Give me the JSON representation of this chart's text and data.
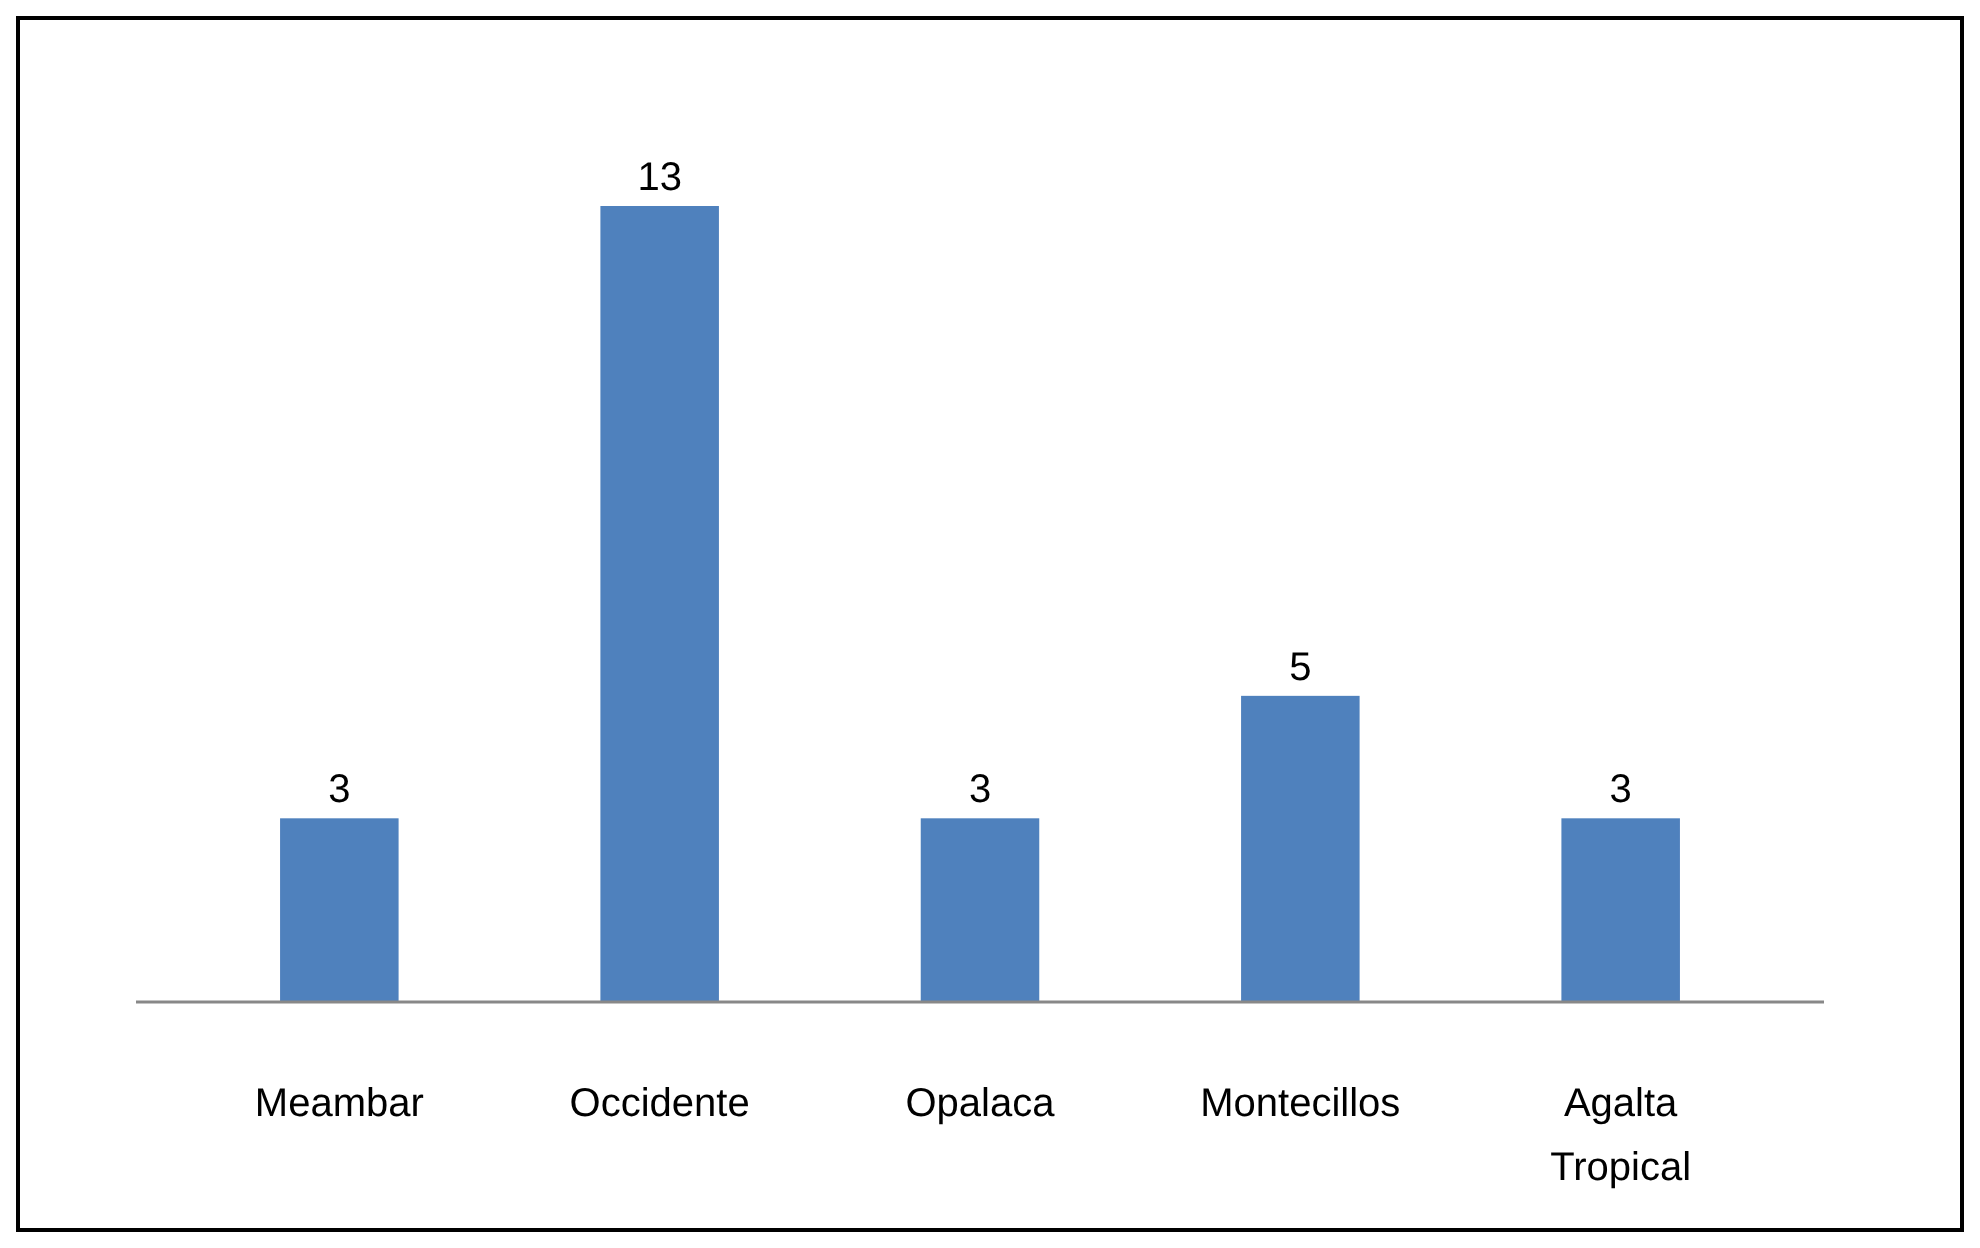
{
  "chart_data": {
    "type": "bar",
    "categories": [
      "Meambar",
      "Occidente",
      "Opalaca",
      "Montecillos",
      "Agalta Tropical"
    ],
    "values": [
      3,
      13,
      3,
      5,
      3
    ],
    "color": "#4f81bd",
    "data_labels": true
  }
}
